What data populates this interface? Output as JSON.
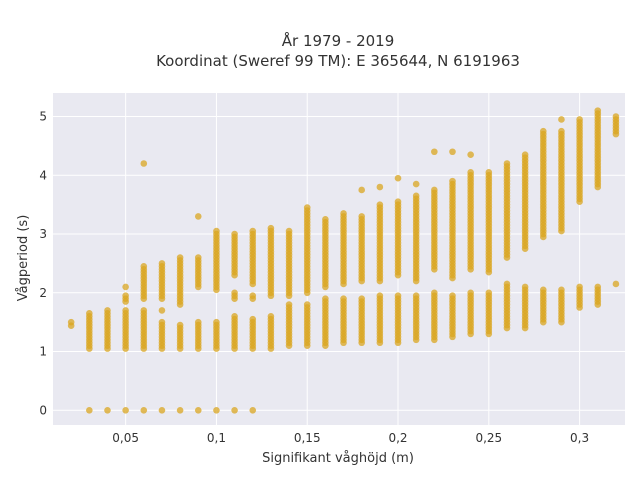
{
  "chart_data": {
    "type": "scatter",
    "title_lines": [
      "År 1979 - 2019",
      "Koordinat (Sweref 99 TM): E 365644, N 6191963"
    ],
    "xlabel": "Signifikant våghöjd (m)",
    "ylabel": "Vågperiod (s)",
    "xlim": [
      0.01,
      0.325
    ],
    "ylim": [
      -0.25,
      5.4
    ],
    "x_ticks": [
      0.05,
      0.1,
      0.15,
      0.2,
      0.25,
      0.3
    ],
    "x_tick_labels": [
      "0,05",
      "0,1",
      "0,15",
      "0,2",
      "0,25",
      "0,3"
    ],
    "y_ticks": [
      0,
      1,
      2,
      3,
      4,
      5
    ],
    "y_tick_labels": [
      "0",
      "1",
      "2",
      "3",
      "4",
      "5"
    ],
    "grid": true,
    "legend": "none",
    "marker_color": "#DAA520",
    "plot_background": "#E9E9F1",
    "series": [
      {
        "columns": [
          {
            "x": 0.02,
            "segments": [
              [
                1.44,
                1.5
              ]
            ]
          },
          {
            "x": 0.03,
            "segments": [
              [
                0,
                0
              ],
              [
                1.05,
                1.65
              ]
            ]
          },
          {
            "x": 0.04,
            "segments": [
              [
                0,
                0
              ],
              [
                1.05,
                1.7
              ]
            ]
          },
          {
            "x": 0.05,
            "segments": [
              [
                0,
                0
              ],
              [
                1.05,
                1.7
              ],
              [
                1.85,
                1.95
              ],
              [
                2.1,
                2.1
              ]
            ]
          },
          {
            "x": 0.06,
            "segments": [
              [
                0,
                0
              ],
              [
                1.05,
                1.7
              ],
              [
                1.9,
                2.45
              ],
              [
                4.2,
                4.2
              ]
            ]
          },
          {
            "x": 0.07,
            "segments": [
              [
                0,
                0
              ],
              [
                1.05,
                1.5
              ],
              [
                1.7,
                1.7
              ],
              [
                1.9,
                2.5
              ]
            ]
          },
          {
            "x": 0.08,
            "segments": [
              [
                0,
                0
              ],
              [
                1.05,
                1.45
              ],
              [
                1.8,
                2.6
              ]
            ]
          },
          {
            "x": 0.09,
            "segments": [
              [
                0,
                0
              ],
              [
                1.05,
                1.5
              ],
              [
                2.1,
                2.6
              ],
              [
                3.3,
                3.3
              ]
            ]
          },
          {
            "x": 0.1,
            "segments": [
              [
                0,
                0
              ],
              [
                1.05,
                1.5
              ],
              [
                2.05,
                3.05
              ]
            ]
          },
          {
            "x": 0.11,
            "segments": [
              [
                0,
                0
              ],
              [
                1.05,
                1.6
              ],
              [
                1.9,
                2.0
              ],
              [
                2.3,
                3.0
              ]
            ]
          },
          {
            "x": 0.12,
            "segments": [
              [
                0,
                0
              ],
              [
                1.05,
                1.55
              ],
              [
                1.9,
                1.95
              ],
              [
                2.15,
                3.05
              ]
            ]
          },
          {
            "x": 0.13,
            "segments": [
              [
                1.05,
                1.6
              ],
              [
                1.95,
                3.1
              ]
            ]
          },
          {
            "x": 0.14,
            "segments": [
              [
                1.1,
                1.8
              ],
              [
                1.95,
                3.05
              ]
            ]
          },
          {
            "x": 0.15,
            "segments": [
              [
                1.1,
                1.8
              ],
              [
                2.0,
                3.45
              ]
            ]
          },
          {
            "x": 0.16,
            "segments": [
              [
                1.1,
                1.9
              ],
              [
                2.1,
                3.25
              ]
            ]
          },
          {
            "x": 0.17,
            "segments": [
              [
                1.15,
                1.9
              ],
              [
                2.15,
                3.35
              ]
            ]
          },
          {
            "x": 0.18,
            "segments": [
              [
                1.15,
                1.9
              ],
              [
                2.2,
                3.3
              ],
              [
                3.75,
                3.75
              ]
            ]
          },
          {
            "x": 0.19,
            "segments": [
              [
                1.15,
                1.95
              ],
              [
                2.2,
                3.5
              ],
              [
                3.8,
                3.8
              ]
            ]
          },
          {
            "x": 0.2,
            "segments": [
              [
                1.15,
                1.95
              ],
              [
                2.3,
                3.55
              ],
              [
                3.95,
                3.95
              ]
            ]
          },
          {
            "x": 0.21,
            "segments": [
              [
                1.2,
                1.95
              ],
              [
                2.2,
                3.65
              ],
              [
                3.85,
                3.85
              ]
            ]
          },
          {
            "x": 0.22,
            "segments": [
              [
                1.2,
                2.0
              ],
              [
                2.4,
                3.75
              ],
              [
                4.4,
                4.4
              ]
            ]
          },
          {
            "x": 0.23,
            "segments": [
              [
                1.25,
                1.95
              ],
              [
                2.25,
                3.9
              ],
              [
                4.4,
                4.4
              ]
            ]
          },
          {
            "x": 0.24,
            "segments": [
              [
                1.3,
                2.0
              ],
              [
                2.4,
                4.05
              ],
              [
                4.35,
                4.35
              ]
            ]
          },
          {
            "x": 0.25,
            "segments": [
              [
                1.3,
                2.0
              ],
              [
                2.35,
                4.05
              ]
            ]
          },
          {
            "x": 0.26,
            "segments": [
              [
                1.4,
                2.15
              ],
              [
                2.6,
                4.2
              ]
            ]
          },
          {
            "x": 0.27,
            "segments": [
              [
                1.4,
                2.1
              ],
              [
                2.75,
                4.35
              ]
            ]
          },
          {
            "x": 0.28,
            "segments": [
              [
                1.5,
                2.05
              ],
              [
                2.95,
                4.75
              ]
            ]
          },
          {
            "x": 0.29,
            "segments": [
              [
                1.5,
                2.05
              ],
              [
                3.05,
                4.75
              ],
              [
                4.95,
                4.95
              ]
            ]
          },
          {
            "x": 0.3,
            "segments": [
              [
                1.75,
                2.1
              ],
              [
                3.55,
                4.95
              ]
            ]
          },
          {
            "x": 0.31,
            "segments": [
              [
                1.8,
                2.1
              ],
              [
                3.8,
                5.1
              ]
            ]
          },
          {
            "x": 0.32,
            "segments": [
              [
                2.15,
                2.15
              ],
              [
                4.7,
                5.0
              ]
            ]
          }
        ]
      }
    ]
  }
}
